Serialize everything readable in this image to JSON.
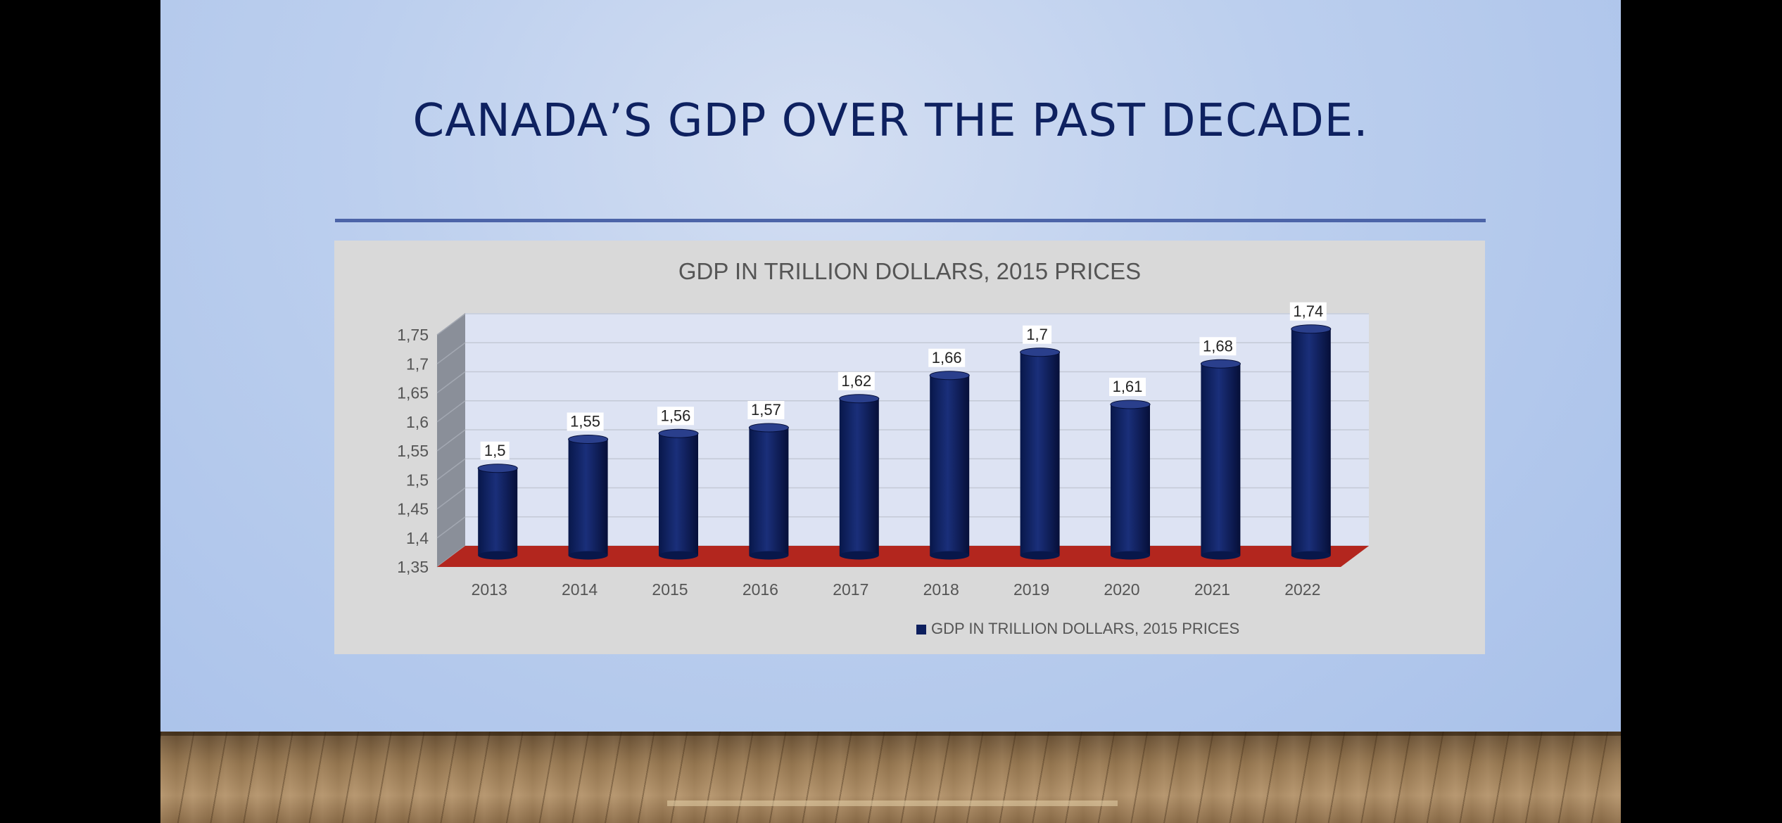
{
  "slide": {
    "title": "CANADA’S GDP OVER THE PAST DECADE."
  },
  "colors": {
    "bar": "#0d1f5e",
    "floor": "#b3261e",
    "back_wall": "#dde3f3",
    "side_wall": "#8a8f99"
  },
  "chart_data": {
    "type": "bar",
    "style": "3d-cylinder",
    "title": "GDP IN TRILLION DOLLARS, 2015 PRICES",
    "categories": [
      "2013",
      "2014",
      "2015",
      "2016",
      "2017",
      "2018",
      "2019",
      "2020",
      "2021",
      "2022"
    ],
    "series": [
      {
        "name": "GDP IN TRILLION DOLLARS, 2015 PRICES",
        "values": [
          1.5,
          1.55,
          1.56,
          1.57,
          1.62,
          1.66,
          1.7,
          1.61,
          1.68,
          1.74
        ],
        "data_labels": [
          "1,5",
          "1,55",
          "1,56",
          "1,57",
          "1,62",
          "1,66",
          "1,7",
          "1,61",
          "1,68",
          "1,74"
        ]
      }
    ],
    "y_ticks": [
      1.35,
      1.4,
      1.45,
      1.5,
      1.55,
      1.6,
      1.65,
      1.7,
      1.75
    ],
    "y_tick_labels": [
      "1,35",
      "1,4",
      "1,45",
      "1,5",
      "1,55",
      "1,6",
      "1,65",
      "1,7",
      "1,75"
    ],
    "ylim": [
      1.35,
      1.75
    ],
    "xlabel": "",
    "ylabel": "",
    "grid": true,
    "legend_position": "bottom"
  }
}
